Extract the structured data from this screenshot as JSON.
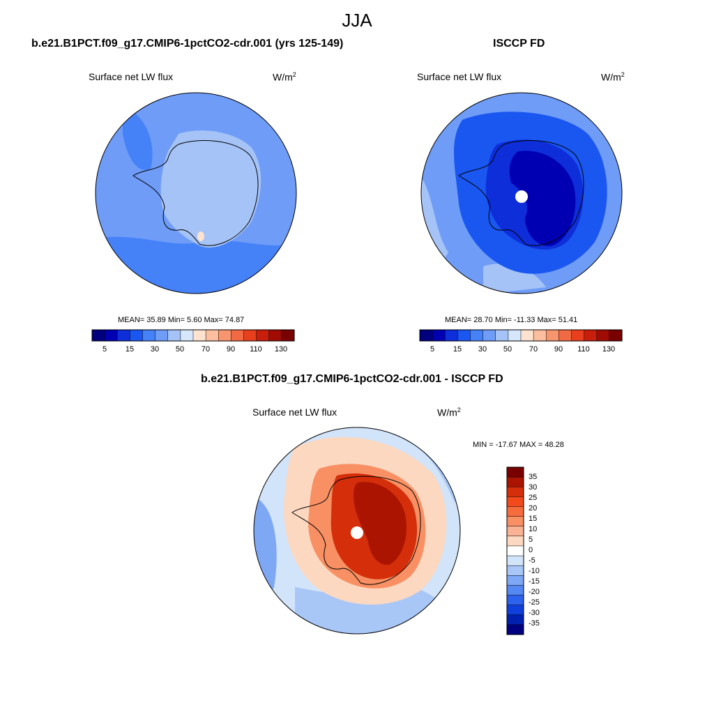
{
  "figure": {
    "season": "JJA"
  },
  "panels": [
    {
      "title": "b.e21.B1PCT.f09_g17.CMIP6-1pctCO2-cdr.001 (yrs 125-149)",
      "variable": "Surface net LW flux",
      "units_base": "W/m",
      "units_exp": "2",
      "stats": "MEAN=  35.89  Min=   5.60  Max=  74.87"
    },
    {
      "title": "ISCCP FD",
      "variable": "Surface net LW flux",
      "units_base": "W/m",
      "units_exp": "2",
      "stats": "MEAN=  28.70  Min= -11.33  Max=  51.41"
    },
    {
      "title": "b.e21.B1PCT.f09_g17.CMIP6-1pctCO2-cdr.001 - ISCCP FD",
      "variable": "Surface net LW flux",
      "units_base": "W/m",
      "units_exp": "2",
      "stats": "MIN = -17.67 MAX =  48.28"
    }
  ],
  "colorbar_abs": {
    "colors": [
      "#00007f",
      "#0000b2",
      "#0d2ed9",
      "#1a56f0",
      "#4682f7",
      "#6f9cf7",
      "#a5c3f7",
      "#d6e6fb",
      "#fde3cf",
      "#fbbfa0",
      "#f7966e",
      "#f26a44",
      "#e8401e",
      "#c81e0c",
      "#a00b04",
      "#7a0000"
    ],
    "tick_labels": [
      "5",
      "15",
      "30",
      "50",
      "70",
      "90",
      "110",
      "130"
    ]
  },
  "colorbar_diff": {
    "colors_top_to_bottom": [
      "#7a0000",
      "#aa1400",
      "#d42e0a",
      "#f24a1c",
      "#f66c3c",
      "#f89064",
      "#fab294",
      "#fcd8c0",
      "#ffffff",
      "#d2e4fa",
      "#a8c6f6",
      "#7ea8f4",
      "#5488f2",
      "#2c62ee",
      "#1040dc",
      "#0020b0",
      "#000080"
    ],
    "tick_labels": [
      "35",
      "30",
      "25",
      "20",
      "15",
      "10",
      "5",
      "0",
      "-5",
      "-10",
      "-15",
      "-20",
      "-25",
      "-30",
      "-35"
    ]
  },
  "map_fills": {
    "panel1": {
      "background": "#6f9cf7",
      "antarctica": "#a5c3f7",
      "dark_patches": "#4682f7",
      "warm_spot": "#fde3cf"
    },
    "panel2": {
      "background": "#6f9cf7",
      "ring": "#a5c3f7",
      "antarctica": "#1a56f0",
      "interior": "#0d2ed9",
      "core": "#0000b2"
    },
    "panel3": {
      "background": "#d2e4fa",
      "warm": "#fcd8c0",
      "warmer": "#f89064",
      "hot": "#d42e0a",
      "hottest": "#aa1400",
      "cool": "#a8c6f6",
      "cooler": "#7ea8f4"
    },
    "coastline": "#000000",
    "pole_mask": "#ffffff"
  }
}
